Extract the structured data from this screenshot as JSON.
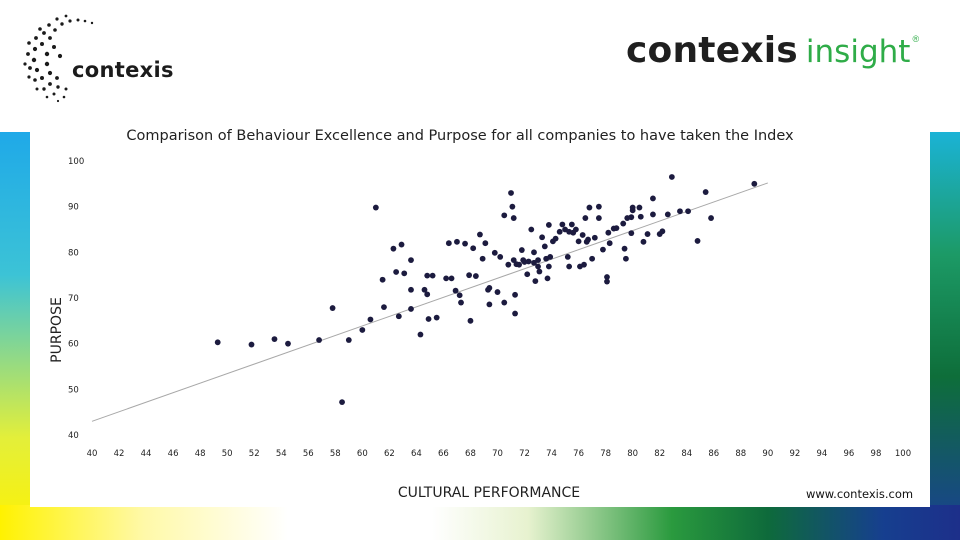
{
  "header": {
    "logo_left_text": "contexis",
    "logo_right_main": "contexis",
    "logo_right_sub": "insight",
    "logo_right_reg": "®"
  },
  "footer": {
    "website": "www.contexis.com"
  },
  "colors": {
    "points": "#1c1b3f",
    "trendline": "#a8a8a8",
    "brand_green": "#2fac48",
    "text": "#222222"
  },
  "chart_data": {
    "type": "scatter",
    "title": "Comparison of Behaviour Excellence and Purpose for all companies to have taken the Index",
    "xlabel": "CULTURAL PERFORMANCE",
    "ylabel": "PURPOSE",
    "xlim": [
      40,
      100
    ],
    "ylim": [
      40,
      100
    ],
    "x_ticks": [
      40,
      42,
      44,
      46,
      48,
      50,
      52,
      54,
      56,
      58,
      60,
      62,
      64,
      66,
      68,
      70,
      72,
      74,
      76,
      78,
      80,
      82,
      84,
      86,
      88,
      90,
      92,
      94,
      96,
      98,
      100
    ],
    "y_ticks": [
      40,
      50,
      60,
      70,
      80,
      90,
      100
    ],
    "grid": false,
    "legend": "none",
    "trendline": {
      "x": [
        40,
        90
      ],
      "y": [
        43.0,
        95.2
      ]
    },
    "points": [
      [
        49.3,
        60.3
      ],
      [
        51.8,
        59.8
      ],
      [
        53.5,
        61.0
      ],
      [
        54.5,
        60.0
      ],
      [
        56.8,
        60.8
      ],
      [
        57.8,
        67.8
      ],
      [
        58.5,
        47.2
      ],
      [
        59.0,
        60.8
      ],
      [
        60.0,
        63.0
      ],
      [
        60.6,
        65.3
      ],
      [
        61.0,
        89.8
      ],
      [
        61.5,
        74.0
      ],
      [
        61.6,
        68.0
      ],
      [
        62.3,
        80.8
      ],
      [
        62.5,
        75.7
      ],
      [
        62.7,
        66.0
      ],
      [
        62.9,
        81.7
      ],
      [
        63.1,
        75.4
      ],
      [
        63.6,
        78.3
      ],
      [
        63.6,
        71.8
      ],
      [
        63.6,
        67.6
      ],
      [
        64.3,
        62.0
      ],
      [
        64.6,
        71.8
      ],
      [
        64.8,
        74.9
      ],
      [
        64.8,
        70.8
      ],
      [
        64.9,
        65.4
      ],
      [
        65.2,
        74.9
      ],
      [
        65.5,
        65.7
      ],
      [
        66.2,
        74.3
      ],
      [
        66.4,
        82.0
      ],
      [
        66.6,
        74.3
      ],
      [
        66.9,
        71.6
      ],
      [
        67.0,
        82.3
      ],
      [
        67.2,
        70.6
      ],
      [
        67.3,
        69.0
      ],
      [
        67.6,
        81.9
      ],
      [
        67.9,
        75.0
      ],
      [
        68.0,
        65.0
      ],
      [
        68.2,
        80.9
      ],
      [
        68.4,
        74.8
      ],
      [
        68.7,
        83.9
      ],
      [
        68.9,
        78.6
      ],
      [
        69.1,
        82.0
      ],
      [
        69.3,
        71.8
      ],
      [
        69.4,
        68.6
      ],
      [
        69.4,
        72.2
      ],
      [
        69.8,
        79.9
      ],
      [
        70.0,
        71.3
      ],
      [
        70.2,
        79.0
      ],
      [
        70.5,
        88.1
      ],
      [
        70.5,
        69.0
      ],
      [
        70.8,
        77.3
      ],
      [
        71.0,
        93.0
      ],
      [
        71.1,
        90.0
      ],
      [
        71.2,
        87.5
      ],
      [
        71.2,
        78.3
      ],
      [
        71.3,
        70.7
      ],
      [
        71.3,
        66.6
      ],
      [
        71.4,
        77.4
      ],
      [
        71.6,
        77.3
      ],
      [
        71.8,
        80.5
      ],
      [
        71.9,
        78.3
      ],
      [
        72.0,
        77.9
      ],
      [
        72.2,
        75.2
      ],
      [
        72.3,
        78.0
      ],
      [
        72.5,
        85.0
      ],
      [
        72.7,
        80.0
      ],
      [
        72.7,
        77.7
      ],
      [
        72.8,
        73.7
      ],
      [
        73.0,
        76.9
      ],
      [
        73.0,
        78.3
      ],
      [
        73.1,
        75.8
      ],
      [
        73.3,
        83.3
      ],
      [
        73.5,
        81.3
      ],
      [
        73.6,
        78.6
      ],
      [
        73.7,
        74.3
      ],
      [
        73.8,
        86.0
      ],
      [
        73.8,
        76.9
      ],
      [
        73.9,
        79.0
      ],
      [
        74.1,
        82.4
      ],
      [
        74.3,
        83.0
      ],
      [
        74.6,
        84.5
      ],
      [
        74.8,
        86.1
      ],
      [
        75.0,
        85.0
      ],
      [
        75.2,
        79.0
      ],
      [
        75.3,
        84.5
      ],
      [
        75.3,
        76.9
      ],
      [
        75.5,
        86.1
      ],
      [
        75.6,
        84.3
      ],
      [
        75.8,
        85.0
      ],
      [
        76.0,
        82.4
      ],
      [
        76.1,
        76.9
      ],
      [
        76.3,
        83.8
      ],
      [
        76.4,
        77.3
      ],
      [
        76.5,
        87.5
      ],
      [
        76.6,
        82.3
      ],
      [
        76.7,
        82.8
      ],
      [
        76.8,
        89.8
      ],
      [
        77.0,
        78.6
      ],
      [
        77.2,
        83.2
      ],
      [
        77.5,
        90.0
      ],
      [
        77.5,
        87.5
      ],
      [
        77.8,
        80.6
      ],
      [
        78.1,
        74.6
      ],
      [
        78.1,
        73.6
      ],
      [
        78.2,
        84.3
      ],
      [
        78.3,
        82.0
      ],
      [
        78.6,
        85.2
      ],
      [
        78.8,
        85.3
      ],
      [
        79.3,
        86.3
      ],
      [
        79.4,
        80.8
      ],
      [
        79.5,
        78.6
      ],
      [
        79.6,
        87.5
      ],
      [
        79.9,
        87.7
      ],
      [
        79.9,
        84.2
      ],
      [
        80.0,
        89.2
      ],
      [
        80.0,
        89.8
      ],
      [
        80.5,
        89.8
      ],
      [
        80.6,
        87.8
      ],
      [
        80.8,
        82.3
      ],
      [
        81.1,
        84.0
      ],
      [
        81.5,
        88.3
      ],
      [
        81.5,
        91.8
      ],
      [
        82.0,
        84.0
      ],
      [
        82.2,
        84.6
      ],
      [
        82.6,
        88.3
      ],
      [
        82.9,
        96.5
      ],
      [
        83.5,
        89.0
      ],
      [
        84.1,
        89.0
      ],
      [
        84.8,
        82.5
      ],
      [
        85.4,
        93.2
      ],
      [
        85.8,
        87.5
      ],
      [
        89.0,
        95.0
      ]
    ]
  }
}
